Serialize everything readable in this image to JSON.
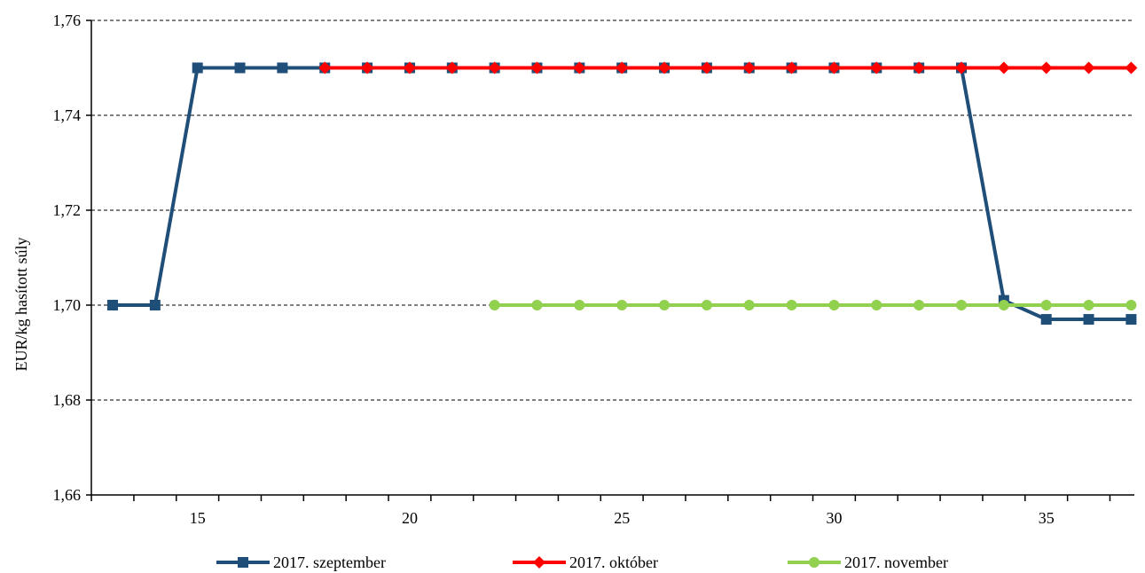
{
  "chart_data": {
    "type": "line",
    "title": "",
    "xlabel": "",
    "ylabel": "EUR/kg hasított súly",
    "xlim": [
      13,
      37
    ],
    "ylim": [
      1.66,
      1.76
    ],
    "x_ticks": [
      15,
      20,
      25,
      30,
      35
    ],
    "y_ticks": [
      1.66,
      1.68,
      1.7,
      1.72,
      1.74,
      1.76
    ],
    "y_tick_labels": [
      "1,66",
      "1,68",
      "1,70",
      "1,72",
      "1,74",
      "1,76"
    ],
    "grid": "horizontal dashed",
    "legend_position": "bottom",
    "series": [
      {
        "name": "2017. szeptember",
        "color": "#1f4e79",
        "marker": "square",
        "x": [
          13,
          14,
          15,
          16,
          17,
          18,
          19,
          20,
          21,
          22,
          23,
          24,
          25,
          26,
          27,
          28,
          29,
          30,
          31,
          32,
          33,
          34,
          35,
          36,
          37
        ],
        "values": [
          1.7,
          1.7,
          1.75,
          1.75,
          1.75,
          1.75,
          1.75,
          1.75,
          1.75,
          1.75,
          1.75,
          1.75,
          1.75,
          1.75,
          1.75,
          1.75,
          1.75,
          1.75,
          1.75,
          1.75,
          1.75,
          1.701,
          1.697,
          1.697,
          1.697
        ]
      },
      {
        "name": "2017. október",
        "color": "#ff0000",
        "marker": "diamond",
        "x": [
          18,
          19,
          20,
          21,
          22,
          23,
          24,
          25,
          26,
          27,
          28,
          29,
          30,
          31,
          32,
          33,
          34,
          35,
          36,
          37
        ],
        "values": [
          1.75,
          1.75,
          1.75,
          1.75,
          1.75,
          1.75,
          1.75,
          1.75,
          1.75,
          1.75,
          1.75,
          1.75,
          1.75,
          1.75,
          1.75,
          1.75,
          1.75,
          1.75,
          1.75,
          1.75
        ]
      },
      {
        "name": "2017. november",
        "color": "#92d050",
        "marker": "circle",
        "x": [
          22,
          23,
          24,
          25,
          26,
          27,
          28,
          29,
          30,
          31,
          32,
          33,
          34,
          35,
          36,
          37
        ],
        "values": [
          1.7,
          1.7,
          1.7,
          1.7,
          1.7,
          1.7,
          1.7,
          1.7,
          1.7,
          1.7,
          1.7,
          1.7,
          1.7,
          1.7,
          1.7,
          1.7
        ]
      }
    ]
  }
}
